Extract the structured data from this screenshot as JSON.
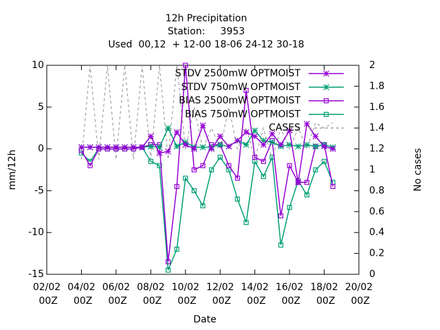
{
  "chart_data": {
    "type": "line",
    "title": [
      "12h Precipitation",
      "Station:     3953",
      "Used  00,12  + 12-00 18-06 24-12 30-18"
    ],
    "xlabel": "Date",
    "ylabel": "mm/12h",
    "y2label": "No cases",
    "x": [
      "04/02 00Z",
      "04/02 12Z",
      "05/02 00Z",
      "05/02 12Z",
      "06/02 00Z",
      "06/02 12Z",
      "07/02 00Z",
      "07/02 12Z",
      "08/02 00Z",
      "08/02 12Z",
      "09/02 00Z",
      "09/02 12Z",
      "10/02 00Z",
      "10/02 12Z",
      "11/02 00Z",
      "11/02 12Z",
      "12/02 00Z",
      "12/02 12Z",
      "13/02 00Z",
      "13/02 12Z",
      "14/02 00Z",
      "14/02 12Z",
      "15/02 00Z",
      "15/02 12Z",
      "16/02 00Z",
      "16/02 12Z",
      "17/02 00Z",
      "17/02 12Z",
      "18/02 00Z",
      "18/02 12Z"
    ],
    "xlim": [
      "02/02 00Z",
      "20/02 00Z"
    ],
    "xticks": [
      "02/02 00Z",
      "04/02 00Z",
      "06/02 00Z",
      "08/02 00Z",
      "10/02 00Z",
      "12/02 00Z",
      "14/02 00Z",
      "16/02 00Z",
      "18/02 00Z",
      "20/02 00Z"
    ],
    "ylim": [
      -15,
      10
    ],
    "yticks": [
      -15,
      -10,
      -5,
      0,
      5,
      10
    ],
    "y2lim": [
      0,
      2
    ],
    "y2ticks": [
      0,
      0.2,
      0.4,
      0.6,
      0.8,
      1,
      1.2,
      1.4,
      1.6,
      1.8,
      2
    ],
    "legend": "top right",
    "series": [
      {
        "name": "STDV 2500mW OPTMOIST",
        "color": "#9400d3",
        "marker": "star",
        "values": [
          0.2,
          0.2,
          0.2,
          0.2,
          0.2,
          0.2,
          0.2,
          0.2,
          1.5,
          -0.5,
          -0.3,
          2,
          0.5,
          0,
          2.8,
          0,
          1.5,
          0.3,
          1,
          2,
          1.5,
          0.5,
          1.8,
          0.5,
          2.2,
          -4,
          3,
          1.5,
          0.3,
          0
        ]
      },
      {
        "name": "STDV 750mW OPTMOIST",
        "color": "#009e73",
        "marker": "star",
        "values": [
          0.2,
          0.2,
          0.2,
          0.2,
          0.2,
          0.2,
          0.2,
          0.2,
          0.3,
          0.2,
          2.5,
          0.3,
          0.8,
          0.2,
          0.2,
          0.2,
          0.5,
          0.3,
          1,
          0.5,
          2.2,
          1,
          0.8,
          0.3,
          0.5,
          0.3,
          0.5,
          0.3,
          0.5,
          0.2
        ]
      },
      {
        "name": "BIAS 2500mW OPTMOIST",
        "color": "#9400d3",
        "marker": "square",
        "values": [
          -0.2,
          -2,
          0,
          0,
          0,
          0,
          0,
          0.2,
          0.5,
          0.5,
          -13.5,
          -4.5,
          10,
          -2.5,
          -2,
          0.5,
          0.5,
          -2,
          -3.5,
          7,
          -1,
          -1.5,
          1,
          -8,
          -2,
          -4,
          -4,
          0.3,
          0.5,
          -4.5
        ]
      },
      {
        "name": "BIAS 750mW OPTMOIST",
        "color": "#009e73",
        "marker": "square",
        "values": [
          -0.5,
          -1.5,
          0,
          0,
          0,
          0,
          0,
          0.2,
          -1.5,
          -2,
          -14.5,
          -12,
          -3.5,
          -5,
          -6.8,
          -2.5,
          -1,
          -2.5,
          -6,
          -8.8,
          -1.5,
          -3.3,
          -1,
          -11.5,
          -7,
          -3.8,
          -5.5,
          -2.5,
          -1.5,
          -4
        ]
      },
      {
        "name": "CASES",
        "color": "#a0a0a0",
        "marker": "none",
        "dash": true,
        "axis": "y2",
        "values": [
          1.1,
          2,
          1.1,
          2,
          1.1,
          2,
          1.1,
          2,
          1.1,
          2,
          1.1,
          2,
          1.2,
          1.6,
          1.2,
          1.4,
          1.2,
          1.6,
          1.2,
          1.4,
          1.1,
          1.4,
          1.1,
          1.4,
          1.2,
          1.4,
          1.2,
          1.45,
          1.4,
          1.45
        ]
      }
    ]
  }
}
